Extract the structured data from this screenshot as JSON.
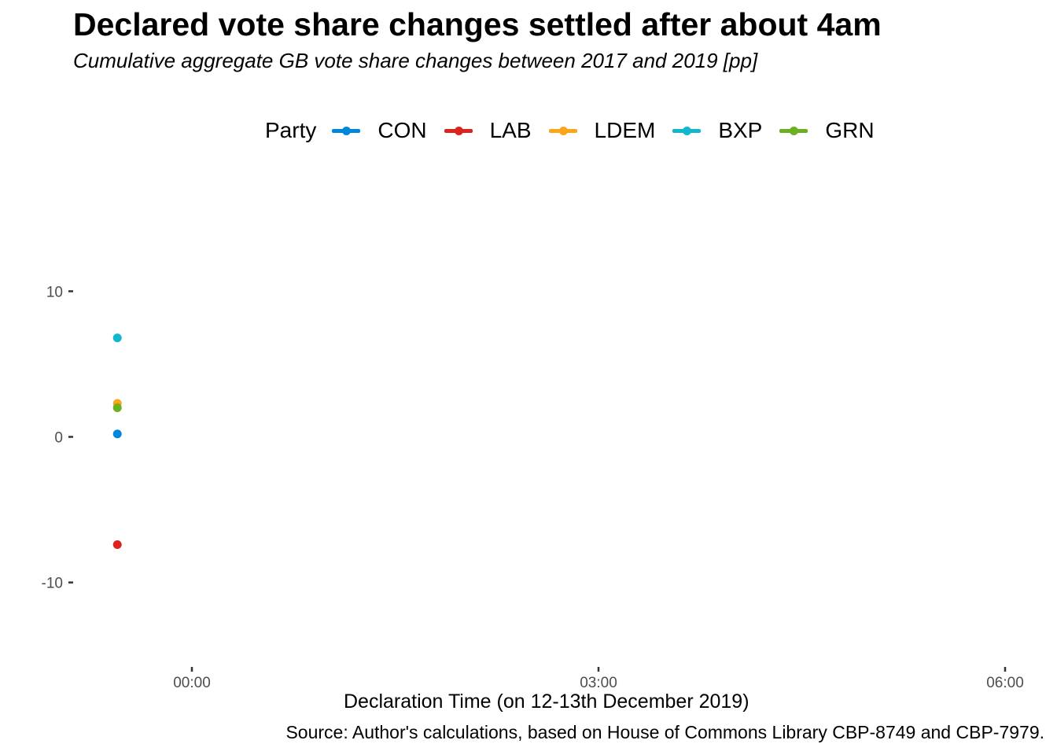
{
  "header": {
    "title": "Declared vote share changes settled after about 4am",
    "subtitle": "Cumulative aggregate GB vote share changes between 2017 and 2019 [pp]"
  },
  "legend": {
    "title": "Party",
    "position": "top",
    "items": [
      {
        "label": "CON",
        "color": "#0087DC"
      },
      {
        "label": "LAB",
        "color": "#DC241F"
      },
      {
        "label": "LDEM",
        "color": "#FAA61A"
      },
      {
        "label": "BXP",
        "color": "#12B6CF"
      },
      {
        "label": "GRN",
        "color": "#6AB023"
      }
    ]
  },
  "chart_data": {
    "type": "scatter",
    "title": "Declared vote share changes settled after about 4am",
    "subtitle": "Cumulative aggregate GB vote share changes between 2017 and 2019 [pp]",
    "xlabel": "Declaration Time (on 12-13th December 2019)",
    "ylabel": "",
    "x_ticks": [
      "00:00",
      "03:00",
      "06:00"
    ],
    "y_ticks": [
      10,
      0,
      -10
    ],
    "x_range_hours": [
      -0.58,
      6.0
    ],
    "ylim": [
      -15.8,
      19.2
    ],
    "grid": false,
    "legend_position": "top",
    "series": [
      {
        "name": "CON",
        "color": "#0087DC",
        "points": [
          {
            "x_hours": -0.55,
            "y": 0.2
          }
        ]
      },
      {
        "name": "LAB",
        "color": "#DC241F",
        "points": [
          {
            "x_hours": -0.55,
            "y": -7.4
          }
        ]
      },
      {
        "name": "LDEM",
        "color": "#FAA61A",
        "points": [
          {
            "x_hours": -0.55,
            "y": 2.3
          }
        ]
      },
      {
        "name": "BXP",
        "color": "#12B6CF",
        "points": [
          {
            "x_hours": -0.55,
            "y": 6.8
          }
        ]
      },
      {
        "name": "GRN",
        "color": "#6AB023",
        "points": [
          {
            "x_hours": -0.55,
            "y": 2.0
          }
        ]
      }
    ]
  },
  "caption": "Source: Author's calculations, based on House of Commons Library CBP-8749 and CBP-7979."
}
